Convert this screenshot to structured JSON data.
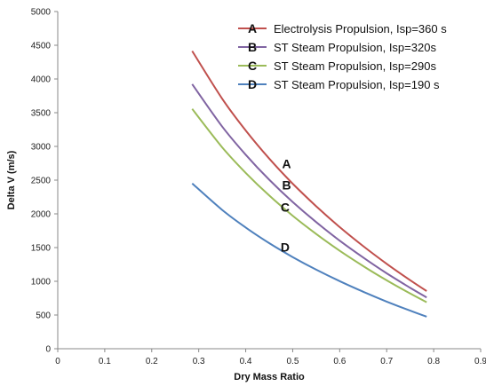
{
  "chart_data": {
    "type": "line",
    "xlabel": "Dry Mass Ratio",
    "ylabel": "Delta V (m/s)",
    "xlim": [
      0,
      0.9
    ],
    "ylim": [
      0,
      5000
    ],
    "x_ticks": [
      "0",
      "0.1",
      "0.2",
      "0.3",
      "0.4",
      "0.5",
      "0.6",
      "0.7",
      "0.8",
      "0.9"
    ],
    "y_ticks": [
      "0",
      "500",
      "1000",
      "1500",
      "2000",
      "2500",
      "3000",
      "3500",
      "4000",
      "4500",
      "5000"
    ],
    "grid": false,
    "legend_position": "top-right",
    "series": [
      {
        "name": "Electrolysis Propulsion, Isp=360 s",
        "marker_label": "A",
        "color": "#c0504d",
        "x": [
          0.286,
          0.35,
          0.4,
          0.45,
          0.5,
          0.55,
          0.6,
          0.65,
          0.7,
          0.75,
          0.785
        ],
        "y": [
          4415,
          3706,
          3236,
          2820,
          2448,
          2112,
          1804,
          1521,
          1259,
          1016,
          855
        ]
      },
      {
        "name": "ST Steam Propulsion, Isp=320s",
        "marker_label": "B",
        "color": "#8064a2",
        "x": [
          0.286,
          0.35,
          0.4,
          0.45,
          0.5,
          0.55,
          0.6,
          0.65,
          0.7,
          0.75,
          0.785
        ],
        "y": [
          3924,
          3294,
          2876,
          2506,
          2176,
          1877,
          1603,
          1352,
          1119,
          903,
          760
        ]
      },
      {
        "name": "ST Steam Propulsion, Isp=290s",
        "marker_label": "C",
        "color": "#9bbb59",
        "x": [
          0.286,
          0.35,
          0.4,
          0.45,
          0.5,
          0.55,
          0.6,
          0.65,
          0.7,
          0.75,
          0.785
        ],
        "y": [
          3556,
          2986,
          2607,
          2272,
          1972,
          1701,
          1453,
          1225,
          1014,
          818,
          689
        ]
      },
      {
        "name": "ST Steam Propulsion, Isp=190 s",
        "marker_label": "D",
        "color": "#4f81bd",
        "x": [
          0.286,
          0.35,
          0.4,
          0.45,
          0.5,
          0.55,
          0.6,
          0.65,
          0.7,
          0.75,
          0.785
        ],
        "y": [
          2451,
          2058,
          1797,
          1566,
          1359,
          1172,
          1002,
          845,
          699,
          564,
          475
        ]
      }
    ],
    "annotations": [
      {
        "text": "A",
        "x": 0.487,
        "y": 2680
      },
      {
        "text": "B",
        "x": 0.487,
        "y": 2360
      },
      {
        "text": "C",
        "x": 0.484,
        "y": 2030
      },
      {
        "text": "D",
        "x": 0.484,
        "y": 1440
      }
    ]
  }
}
